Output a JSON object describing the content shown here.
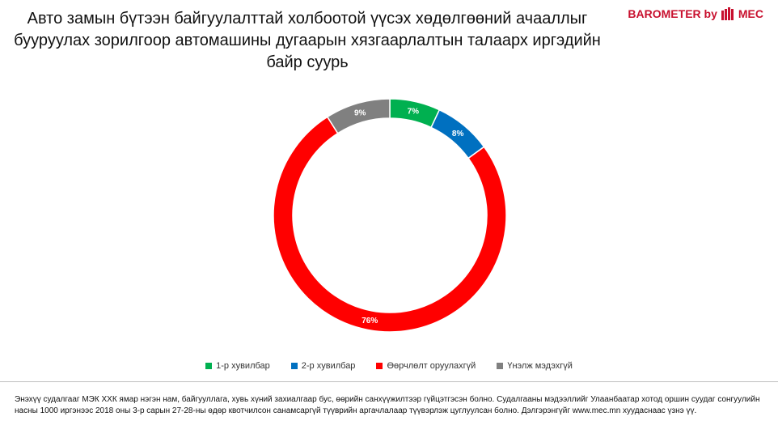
{
  "header": {
    "title_lines": [
      "Авто замын бүтээн байгуулалттай холбоотой үүсэх хөдөлгөөний ачааллыг",
      "бууруулах зорилгоор автомашины дугаарын хязгаарлалтын талаарх иргэдийн",
      "байр суурь"
    ],
    "logo_text": "BAROMETER by",
    "logo_brand": "MEC",
    "logo_color": "#c8102e",
    "logo_icon": "mec-logo-icon"
  },
  "chart_data": {
    "type": "pie",
    "donut": true,
    "categories": [
      "1-р хувилбар",
      "2-р хувилбар",
      "Өөрчлөлт оруулахгүй",
      "Үнэлж мэдэхгүй"
    ],
    "values": [
      7,
      8,
      76,
      9
    ],
    "value_labels": [
      "7%",
      "8%",
      "76%",
      "9%"
    ],
    "colors": [
      "#00b050",
      "#0070c0",
      "#ff0000",
      "#808080"
    ],
    "legend_position": "bottom"
  },
  "footer": {
    "note": "Энэхүү судалгааг МЭК ХХК ямар нэгэн нам, байгууллага, хувь хүний захиалгаар бус, өөрийн санхүүжилтээр гүйцэтгэсэн болно. Судалгааны мэдээллийг Улаанбаатар хотод оршин суудаг сонгуулийн насны 1000 иргэнээс 2018 оны 3-р сарын 27-28-ны өдөр квотчилсон санамсаргүй түүврийн аргачлалаар түүвэрлэж цуглуулсан болно. Дэлгэрэнгүйг www.mec.mn хуудаснаас үзнэ үү."
  }
}
